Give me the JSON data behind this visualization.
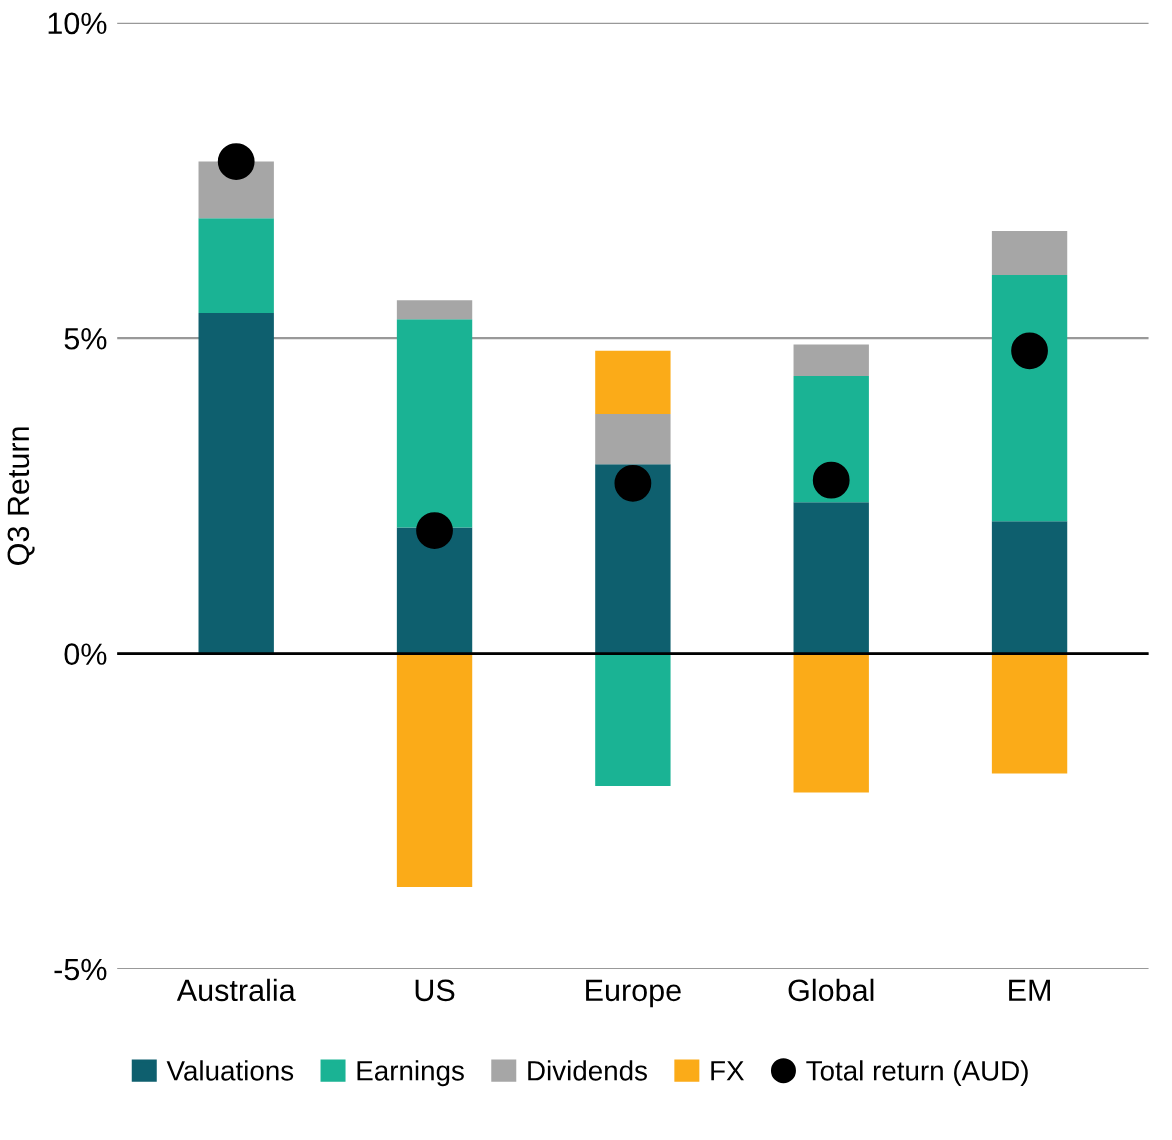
{
  "chart_data": {
    "type": "bar",
    "stacked": true,
    "ylabel": "Q3 Return",
    "categories": [
      "Australia",
      "US",
      "Europe",
      "Global",
      "EM"
    ],
    "series": [
      {
        "name": "Valuations",
        "color": "#0e5f6e",
        "values": [
          5.4,
          2.0,
          3.0,
          2.4,
          2.1
        ]
      },
      {
        "name": "Earnings",
        "color": "#1ab394",
        "values": [
          1.5,
          3.3,
          -2.1,
          2.0,
          3.9
        ]
      },
      {
        "name": "Dividends",
        "color": "#a6a6a6",
        "values": [
          0.9,
          0.3,
          0.8,
          0.5,
          0.7
        ]
      },
      {
        "name": "FX",
        "color": "#fbab18",
        "values": [
          null,
          -3.7,
          1.0,
          -2.2,
          -1.9
        ]
      },
      {
        "name": "Total return (AUD)",
        "type": "scatter",
        "color": "#000000",
        "x": [
          "Australia",
          "US",
          "Europe",
          "Global",
          "EM"
        ],
        "values": [
          7.8,
          1.95,
          2.7,
          2.75,
          4.8
        ]
      }
    ],
    "ylim": [
      -5,
      10
    ],
    "yticks": [
      {
        "value": -5,
        "label": "-5%"
      },
      {
        "value": 0,
        "label": "0%"
      },
      {
        "value": 5,
        "label": "5%"
      },
      {
        "value": 10,
        "label": "10%"
      }
    ],
    "grid": "y",
    "legend": "bottom",
    "marker": "circle",
    "ref_lines": [
      {
        "axis": "y",
        "value": 0,
        "color": "#000000"
      }
    ]
  }
}
